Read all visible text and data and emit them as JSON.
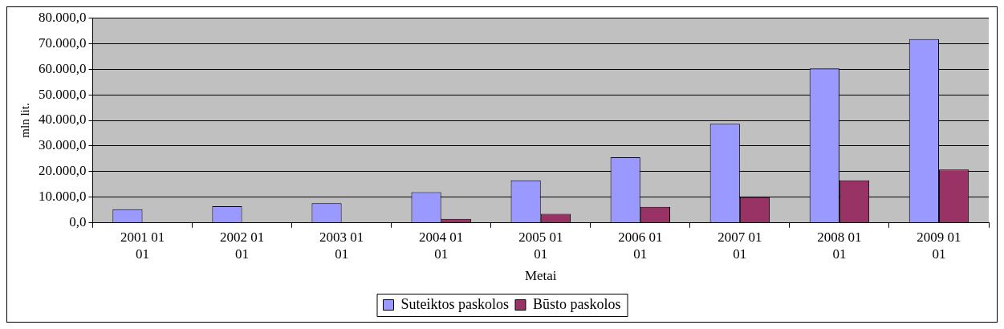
{
  "chart_data": {
    "type": "bar",
    "xlabel": "Metai",
    "ylabel": "mln lit.",
    "categories": [
      "2001 01 01",
      "2002 01 01",
      "2003 01 01",
      "2004 01 01",
      "2005 01 01",
      "2006 01 01",
      "2007 01 01",
      "2008 01 01",
      "2009 01 01"
    ],
    "series": [
      {
        "name": "Suteiktos paskolos",
        "color": "#9999ff",
        "values": [
          5300,
          6500,
          7700,
          12000,
          16600,
          25600,
          38700,
          60300,
          71700
        ]
      },
      {
        "name": "Būsto paskolos",
        "color": "#993366",
        "values": [
          null,
          null,
          null,
          1600,
          3500,
          6300,
          10000,
          16600,
          20800
        ]
      }
    ],
    "ylim": [
      0,
      80000
    ],
    "yticks": [
      {
        "value": 0,
        "label": "0,0"
      },
      {
        "value": 10000,
        "label": "10.000,0"
      },
      {
        "value": 20000,
        "label": "20.000,0"
      },
      {
        "value": 30000,
        "label": "30.000,0"
      },
      {
        "value": 40000,
        "label": "40.000,0"
      },
      {
        "value": 50000,
        "label": "50.000,0"
      },
      {
        "value": 60000,
        "label": "60.000,0"
      },
      {
        "value": 70000,
        "label": "70.000,0"
      },
      {
        "value": 80000,
        "label": "80.000,0"
      }
    ],
    "grid": "y",
    "legend": "bottom"
  }
}
